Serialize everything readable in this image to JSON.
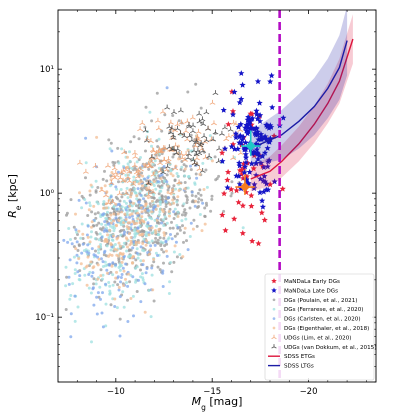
{
  "chart_data": {
    "type": "scatter",
    "xlabel": "M_g [mag]",
    "ylabel": "R_e [kpc]",
    "x_reversed": true,
    "y_scale": "log",
    "xlim": [
      -7,
      -23.5
    ],
    "ylim": [
      0.03,
      30
    ],
    "x_ticks": [
      -10,
      -15,
      -20
    ],
    "x_tick_labels": [
      "−10",
      "−15",
      "−20"
    ],
    "y_ticks": [
      0.1,
      1,
      10
    ],
    "y_tick_labels": [
      "10⁻¹",
      "10⁰",
      "10¹"
    ],
    "vline": {
      "x": -18.5,
      "color": "#b30cc4"
    },
    "colors": {
      "early": "#e8233a",
      "late": "#1414c8",
      "poulain": "#9a9a9a",
      "ferrarese": "#9ee0e0",
      "carlsten": "#7fa7ec",
      "eigenthaler": "#f3be94",
      "lim": "#f0a070",
      "vandokkum": "#444444",
      "sdss_etg": "#dc143c",
      "sdss_ltg": "#1c1ca6"
    },
    "series": [
      {
        "name": "MaNDaLa Early DGs",
        "marker": "star",
        "color": "#e8233a"
      },
      {
        "name": "MaNDaLa Late DGs",
        "marker": "star",
        "color": "#1414c8"
      },
      {
        "name": "DGs (Poulain, et al., 2021)",
        "marker": "dot",
        "color": "#9a9a9a"
      },
      {
        "name": "DGs (Ferrarese, et al., 2020)",
        "marker": "dot",
        "color": "#9ee0e0"
      },
      {
        "name": "DGs (Carlsten, et al., 2020)",
        "marker": "dot",
        "color": "#7fa7ec"
      },
      {
        "name": "DGs (Eigenthaler, et al., 2018)",
        "marker": "dot",
        "color": "#f3be94"
      },
      {
        "name": "UDGs (Lim, et al., 2020)",
        "marker": "tri",
        "color": "#f0a070"
      },
      {
        "name": "UDGs (van Dokkum, et al., 2015)",
        "marker": "tri",
        "color": "#444444"
      },
      {
        "name": "SDSS ETGs",
        "marker": "line",
        "color": "#dc143c",
        "x": [
          -17.0,
          -18.0,
          -18.6,
          -19.5,
          -20.3,
          -21.0,
          -21.6,
          -22.3
        ],
        "y": [
          1.3,
          1.5,
          1.8,
          2.5,
          3.6,
          5.3,
          8.0,
          17.5
        ],
        "band": [
          0.1,
          0.12,
          0.13,
          0.14,
          0.15,
          0.16,
          0.18,
          0.2
        ]
      },
      {
        "name": "SDSS LTGs",
        "marker": "line",
        "color": "#1c1ca6",
        "x": [
          -17.0,
          -17.8,
          -18.6,
          -19.5,
          -20.3,
          -21.0,
          -21.6,
          -22.0
        ],
        "y": [
          2.3,
          2.6,
          2.95,
          3.8,
          5.0,
          7.0,
          10.3,
          17.0
        ],
        "band": [
          0.14,
          0.17,
          0.2,
          0.22,
          0.23,
          0.24,
          0.26,
          0.28
        ]
      }
    ],
    "mean_markers": [
      {
        "series": "MaNDaLa Early DGs",
        "x": -16.7,
        "y": 1.12,
        "xerr": 0.5,
        "yerr_low": 0.15,
        "yerr_high": 0.3,
        "color": "#f47c20"
      },
      {
        "series": "MaNDaLa Late DGs",
        "x": -17.0,
        "y": 2.4,
        "xerr": 0.5,
        "yerr_low": 0.4,
        "yerr_high": 0.8,
        "color": "#1ec8c8"
      }
    ],
    "clouds": [
      {
        "series": "DGs (Poulain, et al., 2021)",
        "cx": -11.5,
        "cy": 0.75,
        "sx": 1.8,
        "sy": 0.28,
        "slope": 0.09,
        "n": 520
      },
      {
        "series": "DGs (Ferrarese, et al., 2020)",
        "cx": -10.8,
        "cy": 0.55,
        "sx": 1.8,
        "sy": 0.3,
        "slope": 0.09,
        "n": 380
      },
      {
        "series": "DGs (Carlsten, et al., 2020)",
        "cx": -10.5,
        "cy": 0.45,
        "sx": 1.7,
        "sy": 0.3,
        "slope": 0.09,
        "n": 200
      },
      {
        "series": "DGs (Eigenthaler, et al., 2018)",
        "cx": -11.0,
        "cy": 0.6,
        "sx": 1.5,
        "sy": 0.25,
        "slope": 0.09,
        "n": 220
      },
      {
        "series": "UDGs (Lim, et al., 2020)",
        "cx": -12.5,
        "cy": 1.9,
        "sx": 1.8,
        "sy": 0.14,
        "slope": 0.06,
        "n": 120
      },
      {
        "series": "UDGs (van Dokkum, et al., 2015)",
        "cx": -13.8,
        "cy": 2.6,
        "sx": 1.1,
        "sy": 0.14,
        "slope": 0.03,
        "n": 60
      },
      {
        "series": "MaNDaLa Early DGs",
        "cx": -16.8,
        "cy": 1.4,
        "sx": 0.7,
        "sy": 0.28,
        "slope": 0.0,
        "n": 45
      },
      {
        "series": "MaNDaLa Late DGs",
        "cx": -17.1,
        "cy": 2.5,
        "sx": 0.6,
        "sy": 0.2,
        "slope": 0.0,
        "n": 140
      }
    ],
    "grid": false,
    "legend_position": "lower-right"
  }
}
